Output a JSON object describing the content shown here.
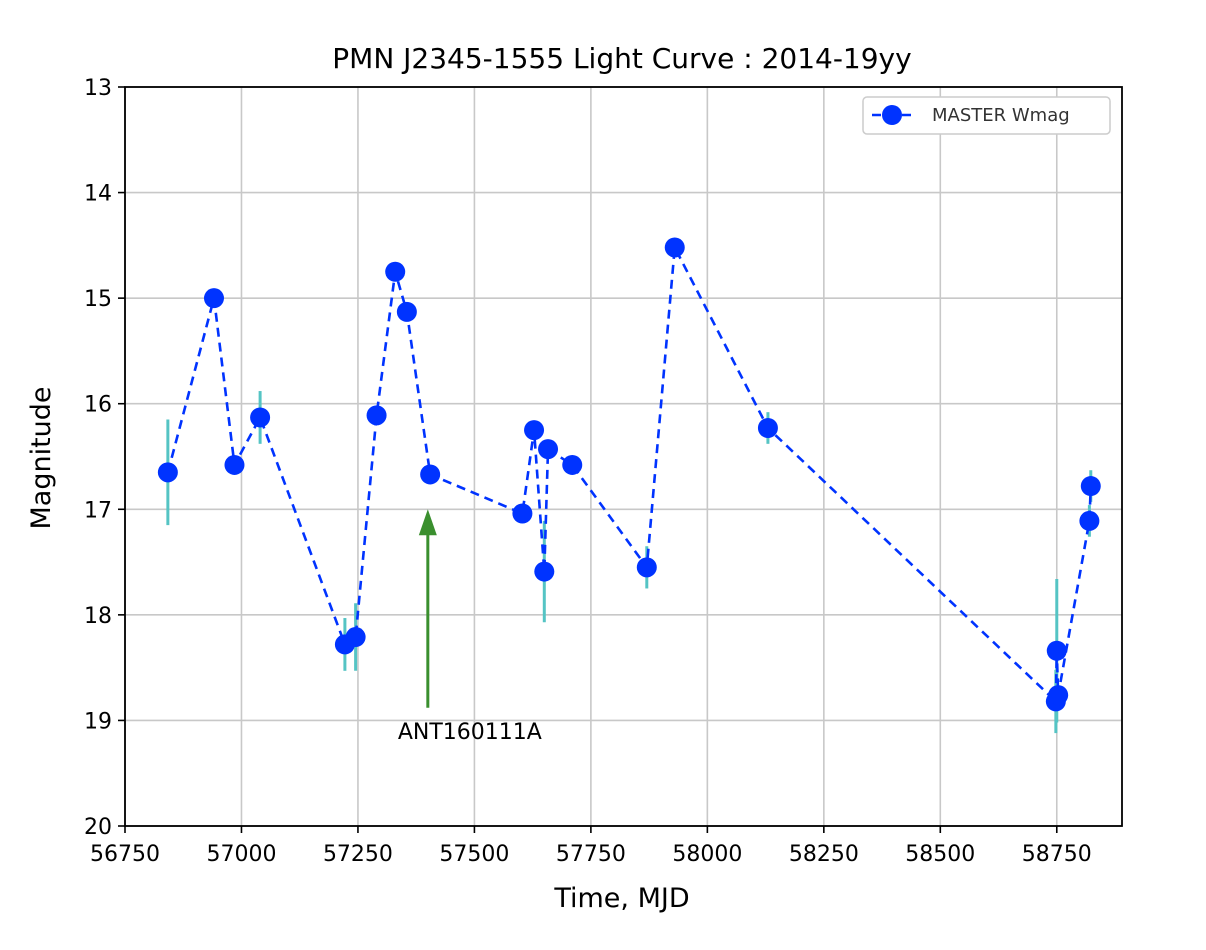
{
  "chart_data": {
    "type": "line",
    "title": "PMN J2345-1555 Light Curve : 2014-19yy",
    "xlabel": "Time, MJD",
    "ylabel": "Magnitude",
    "xlim": [
      56750,
      58890
    ],
    "ylim": [
      20,
      13
    ],
    "y_inverted": true,
    "grid": true,
    "x_ticks": [
      56750,
      57000,
      57250,
      57500,
      57750,
      58000,
      58250,
      58500,
      58750
    ],
    "y_ticks": [
      13,
      14,
      15,
      16,
      17,
      18,
      19,
      20
    ],
    "legend": {
      "placement": "top-right"
    },
    "series": [
      {
        "name": "MASTER Wmag",
        "color": "#0033ff",
        "line_style": "dashed",
        "marker": "circle",
        "error_color": "#55c4c4",
        "x": [
          56842,
          56941,
          56985,
          57040,
          57222,
          57245,
          57290,
          57330,
          57355,
          57405,
          57603,
          57628,
          57650,
          57658,
          57710,
          57870,
          57930,
          58130,
          58748,
          58750,
          58753,
          58820,
          58823
        ],
        "y": [
          16.65,
          15.0,
          16.58,
          16.13,
          18.28,
          18.21,
          16.11,
          14.75,
          15.13,
          16.67,
          17.04,
          16.25,
          17.59,
          16.43,
          16.58,
          17.55,
          14.52,
          16.23,
          18.82,
          18.34,
          18.76,
          17.11,
          16.78
        ],
        "err": [
          0.5,
          0.05,
          0.05,
          0.25,
          0.25,
          0.32,
          0.05,
          0.05,
          0.05,
          0.05,
          0.05,
          0.05,
          0.48,
          0.05,
          0.05,
          0.2,
          0.05,
          0.15,
          0.3,
          0.68,
          0.05,
          0.15,
          0.15
        ]
      }
    ],
    "annotations": [
      {
        "text": "ANT160111A",
        "x": 57400,
        "y_from": 18.88,
        "y_to": 17.0,
        "color": "#3a8f2e"
      }
    ]
  }
}
